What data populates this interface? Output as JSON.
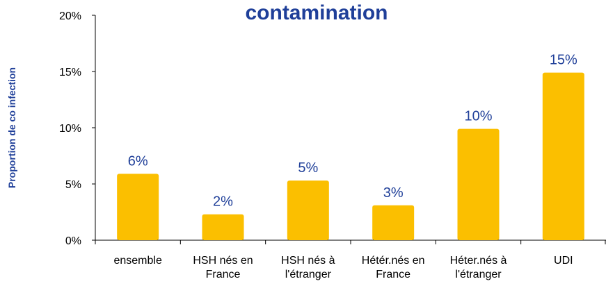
{
  "chart_data": {
    "type": "bar",
    "title": "contamination",
    "y_label": "Proportion de co infection",
    "categories": [
      "ensemble",
      "HSH nés en France",
      "HSH nés à l'étranger",
      "Hétér.nés en France",
      "Héter.nés à l'étranger",
      "UDI"
    ],
    "values": [
      5.9,
      2.3,
      5.3,
      3.1,
      9.9,
      14.9
    ],
    "value_labels": [
      "6%",
      "2%",
      "5%",
      "3%",
      "10%",
      "15%"
    ],
    "color": "#fbbf00",
    "ylim": [
      0,
      20
    ],
    "yticks": [
      {
        "value": 0,
        "label": "0%"
      },
      {
        "value": 5,
        "label": "5%"
      },
      {
        "value": 10,
        "label": "10%"
      },
      {
        "value": 15,
        "label": "15%"
      },
      {
        "value": 20,
        "label": "20%"
      }
    ],
    "grid": false
  }
}
